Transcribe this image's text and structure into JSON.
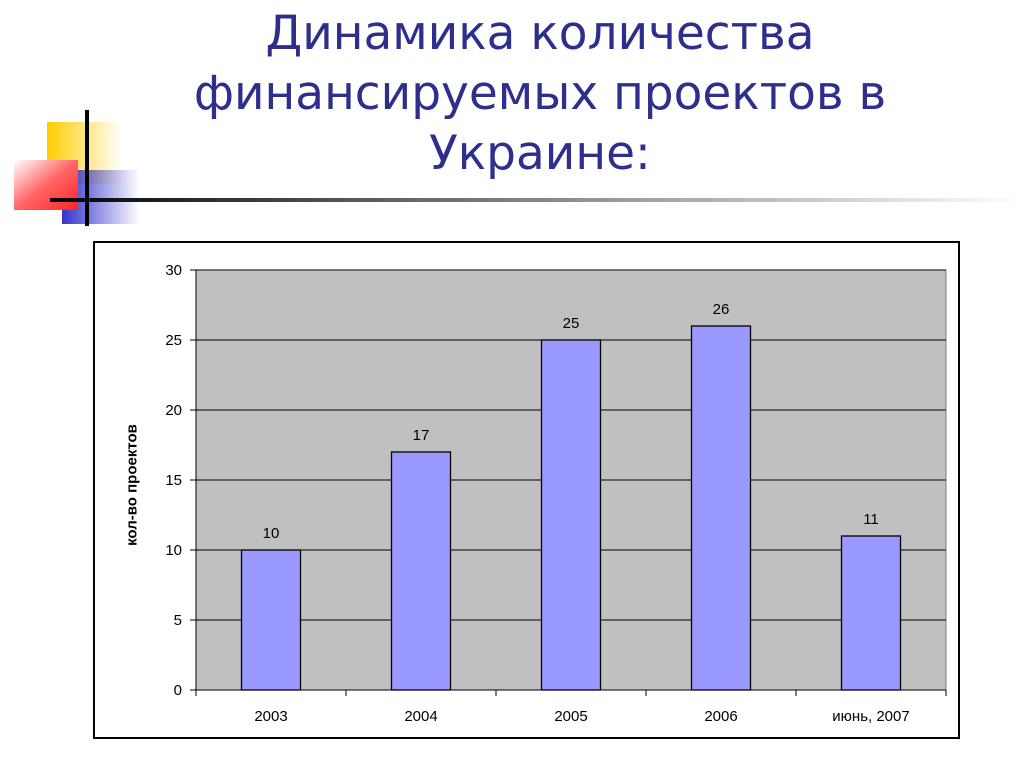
{
  "slide": {
    "title_lines": [
      "Динамика количества",
      "финансируемых проектов в",
      "Украине:"
    ]
  },
  "colors": {
    "title": "#2e2e8c",
    "plot_background": "#c0c0c0",
    "bar_fill": "#9999ff",
    "deco_yellow": "#ffcc00",
    "deco_red": "#ff3333",
    "deco_blue": "#3333cc"
  },
  "chart_data": {
    "type": "bar",
    "categories": [
      "2003",
      "2004",
      "2005",
      "2006",
      "июнь, 2007"
    ],
    "values": [
      10,
      17,
      25,
      26,
      11
    ],
    "data_labels": [
      "10",
      "17",
      "25",
      "26",
      "11"
    ],
    "ylabel": "кол-во проектов",
    "xlabel": "",
    "ylim": [
      0,
      30
    ],
    "yticks": [
      0,
      5,
      10,
      15,
      20,
      25,
      30
    ],
    "grid": true,
    "legend": "none"
  }
}
